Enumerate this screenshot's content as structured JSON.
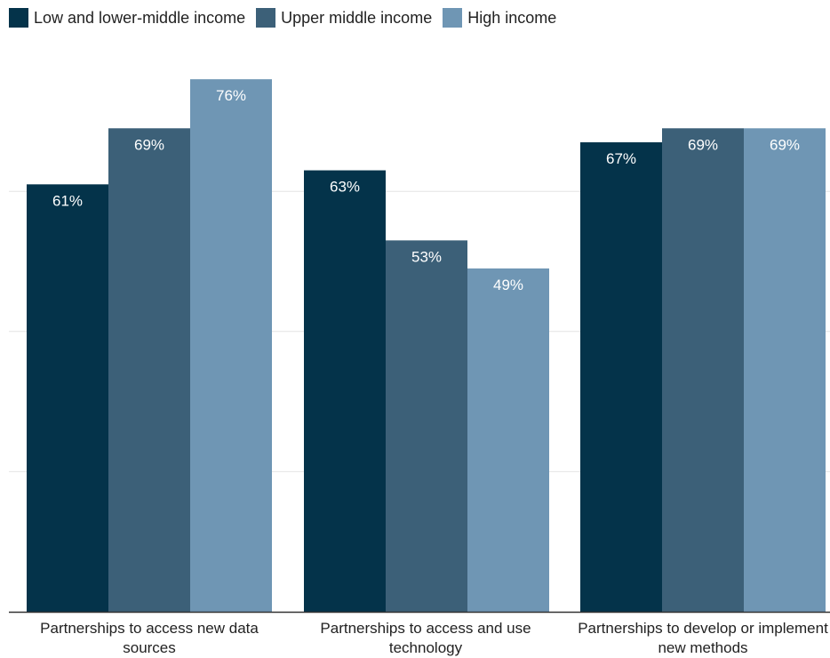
{
  "chart_data": {
    "type": "bar",
    "categories": [
      "Partnerships to access new data sources",
      "Partnerships to access and use technology",
      "Partnerships to develop or implement new methods"
    ],
    "series": [
      {
        "name": "Low and lower-middle income",
        "values": [
          61,
          63,
          67
        ],
        "color": "#04334a"
      },
      {
        "name": "Upper middle income",
        "values": [
          69,
          53,
          69
        ],
        "color": "#3c6078"
      },
      {
        "name": "High income",
        "values": [
          76,
          49,
          69
        ],
        "color": "#6f96b4"
      }
    ],
    "data_labels": [
      [
        "61%",
        "63%",
        "67%"
      ],
      [
        "69%",
        "53%",
        "69%"
      ],
      [
        "76%",
        "49%",
        "69%"
      ]
    ],
    "ylim": [
      0,
      85
    ],
    "grid": true,
    "legend": "top-left",
    "label_color": "#ffffff"
  }
}
